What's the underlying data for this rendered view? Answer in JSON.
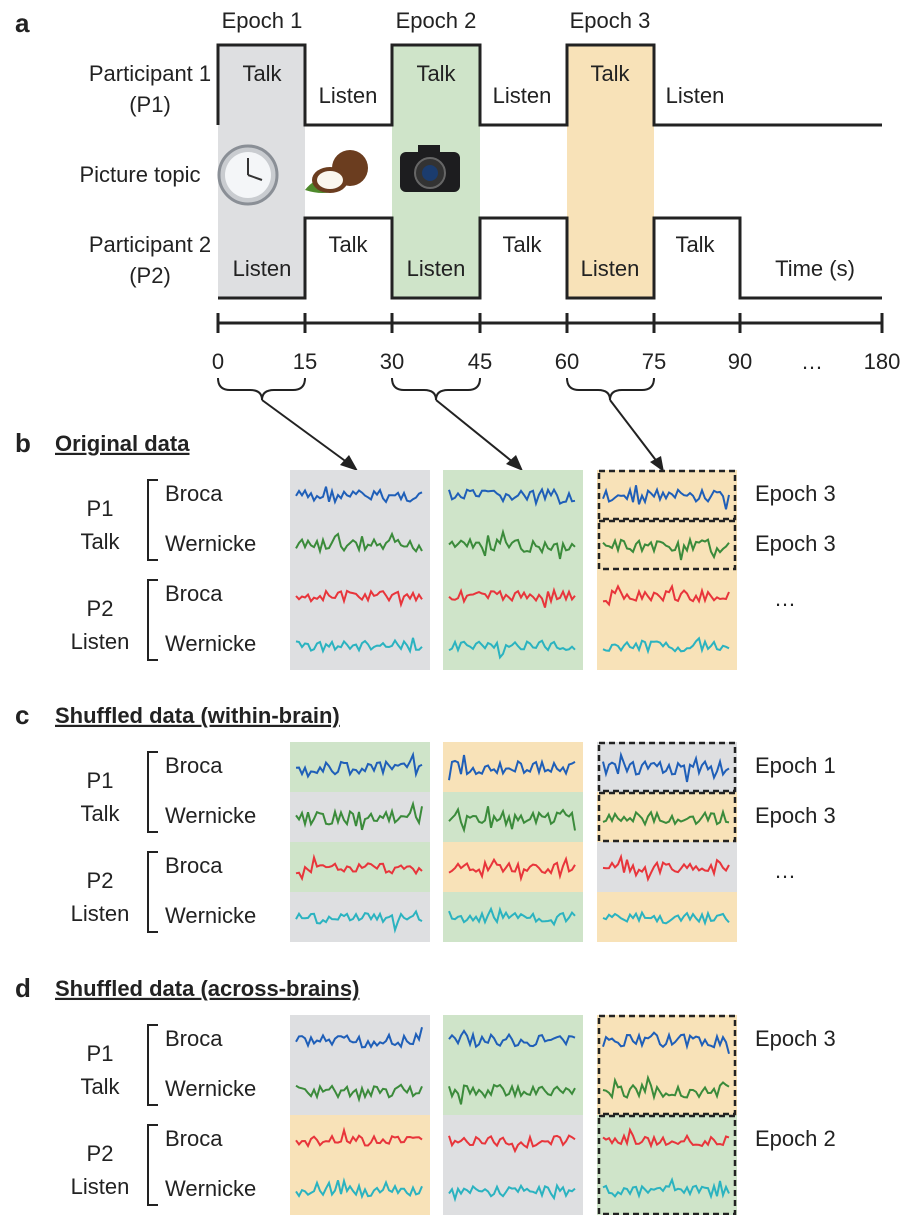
{
  "panel_a": {
    "label": "a",
    "epochs": [
      "Epoch 1",
      "Epoch 2",
      "Epoch 3"
    ],
    "participant_1": [
      "Participant 1",
      "(P1)"
    ],
    "picture_topic": "Picture topic",
    "participant_2": [
      "Participant 2",
      "(P2)"
    ],
    "p1_states": [
      "Talk",
      "Listen",
      "Talk",
      "Listen",
      "Talk",
      "Listen"
    ],
    "p2_states": [
      "Listen",
      "Talk",
      "Listen",
      "Talk",
      "Listen",
      "Talk"
    ],
    "time_label": "Time (s)",
    "time_ticks": [
      "0",
      "15",
      "30",
      "45",
      "60",
      "75",
      "90",
      "…",
      "180"
    ]
  },
  "panels": [
    {
      "label": "b",
      "title": "Original data",
      "groups": [
        {
          "name": [
            "P1",
            "Talk"
          ],
          "regions": [
            "Broca",
            "Wernicke"
          ]
        },
        {
          "name": [
            "P2",
            "Listen"
          ],
          "regions": [
            "Broca",
            "Wernicke"
          ]
        }
      ],
      "epoch_labels": [
        "Epoch 3",
        "Epoch 3"
      ],
      "ellipsis": "…"
    },
    {
      "label": "c",
      "title": "Shuffled data (within-brain)",
      "groups": [
        {
          "name": [
            "P1",
            "Talk"
          ],
          "regions": [
            "Broca",
            "Wernicke"
          ]
        },
        {
          "name": [
            "P2",
            "Listen"
          ],
          "regions": [
            "Broca",
            "Wernicke"
          ]
        }
      ],
      "epoch_labels": [
        "Epoch 1",
        "Epoch 3"
      ],
      "ellipsis": "…"
    },
    {
      "label": "d",
      "title": "Shuffled data (across-brains)",
      "groups": [
        {
          "name": [
            "P1",
            "Talk"
          ],
          "regions": [
            "Broca",
            "Wernicke"
          ]
        },
        {
          "name": [
            "P2",
            "Listen"
          ],
          "regions": [
            "Broca",
            "Wernicke"
          ]
        }
      ],
      "epoch_labels": [
        "Epoch 3",
        "Epoch 2"
      ]
    }
  ]
}
